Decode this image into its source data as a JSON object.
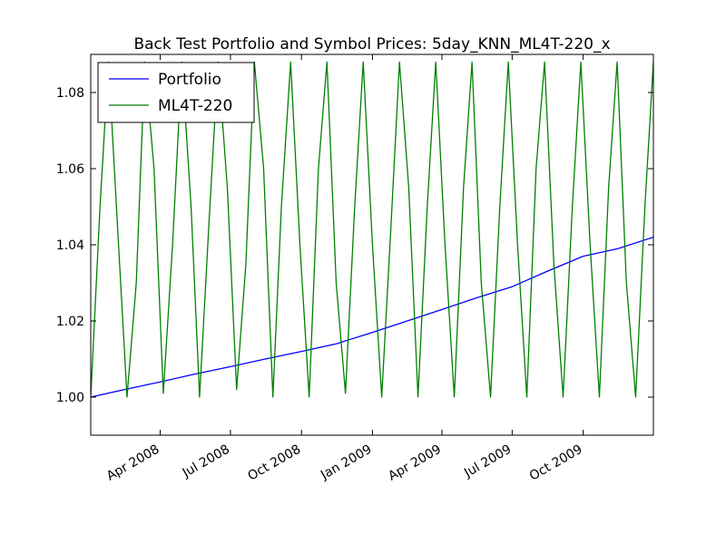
{
  "chart_data": {
    "type": "line",
    "title": "Back Test Portfolio and Symbol Prices: 5day_KNN_ML4T-220_x",
    "xlabel": "",
    "ylabel": "",
    "x_range": [
      "2008-01-02",
      "2009-12-31"
    ],
    "ylim": [
      0.99,
      1.09
    ],
    "yticks": [
      1.0,
      1.02,
      1.04,
      1.06,
      1.08
    ],
    "ytick_labels": [
      "1.00",
      "1.02",
      "1.04",
      "1.06",
      "1.08"
    ],
    "xticks": [
      "2008-04-01",
      "2008-07-01",
      "2008-10-01",
      "2009-01-01",
      "2009-04-01",
      "2009-07-01",
      "2009-10-01"
    ],
    "xtick_labels": [
      "Apr 2008",
      "Jul 2008",
      "Oct 2008",
      "Jan 2009",
      "Apr 2009",
      "Jul 2009",
      "Oct 2009"
    ],
    "grid": false,
    "legend_position": "top-left",
    "series": [
      {
        "name": "Portfolio",
        "color": "#0000ff",
        "x": [
          "2008-01-02",
          "2008-02-15",
          "2008-04-01",
          "2008-05-15",
          "2008-07-01",
          "2008-08-15",
          "2008-10-01",
          "2008-11-15",
          "2009-01-01",
          "2009-02-15",
          "2009-04-01",
          "2009-05-15",
          "2009-07-01",
          "2009-08-15",
          "2009-10-01",
          "2009-11-15",
          "2009-12-31"
        ],
        "values": [
          1.0,
          1.002,
          1.004,
          1.006,
          1.008,
          1.01,
          1.012,
          1.014,
          1.017,
          1.02,
          1.023,
          1.026,
          1.029,
          1.033,
          1.037,
          1.039,
          1.042
        ]
      },
      {
        "name": "ML4T-220",
        "color": "#008000",
        "x": [
          "2008-01-02",
          "2008-01-14",
          "2008-01-25",
          "2008-02-07",
          "2008-02-18",
          "2008-03-01",
          "2008-03-12",
          "2008-03-24",
          "2008-04-05",
          "2008-04-17",
          "2008-04-29",
          "2008-05-11",
          "2008-05-22",
          "2008-06-03",
          "2008-06-15",
          "2008-06-27",
          "2008-07-09",
          "2008-07-21",
          "2008-08-01",
          "2008-08-13",
          "2008-08-25",
          "2008-09-05",
          "2008-09-17",
          "2008-09-29",
          "2008-10-11",
          "2008-10-23",
          "2008-11-03",
          "2008-11-15",
          "2008-11-27",
          "2008-12-09",
          "2008-12-20",
          "2009-01-01",
          "2009-01-13",
          "2009-01-25",
          "2009-02-05",
          "2009-02-17",
          "2009-03-01",
          "2009-03-13",
          "2009-03-24",
          "2009-04-05",
          "2009-04-17",
          "2009-04-29",
          "2009-05-10",
          "2009-05-22",
          "2009-06-03",
          "2009-06-15",
          "2009-06-26",
          "2009-07-08",
          "2009-07-20",
          "2009-08-01",
          "2009-08-12",
          "2009-08-24",
          "2009-09-05",
          "2009-09-17",
          "2009-09-28",
          "2009-10-10",
          "2009-10-22",
          "2009-11-03",
          "2009-11-14",
          "2009-11-26",
          "2009-12-08",
          "2009-12-20",
          "2009-12-31"
        ],
        "values": [
          1.0,
          1.05,
          1.088,
          1.04,
          1.0,
          1.03,
          1.088,
          1.06,
          1.001,
          1.04,
          1.088,
          1.05,
          1.0,
          1.045,
          1.088,
          1.055,
          1.002,
          1.035,
          1.088,
          1.06,
          1.0,
          1.05,
          1.088,
          1.04,
          1.0,
          1.06,
          1.088,
          1.03,
          1.001,
          1.05,
          1.088,
          1.04,
          1.0,
          1.045,
          1.088,
          1.055,
          1.0,
          1.05,
          1.088,
          1.04,
          1.0,
          1.055,
          1.088,
          1.03,
          1.0,
          1.05,
          1.088,
          1.04,
          1.0,
          1.06,
          1.088,
          1.035,
          1.0,
          1.05,
          1.088,
          1.04,
          1.0,
          1.055,
          1.088,
          1.03,
          1.0,
          1.05,
          1.088
        ]
      }
    ]
  }
}
